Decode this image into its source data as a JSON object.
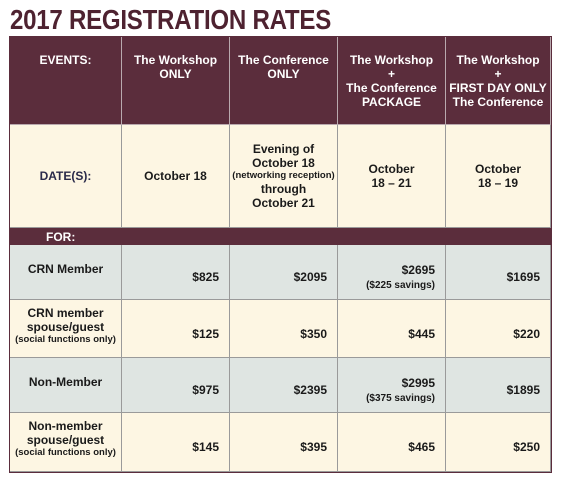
{
  "title": "2017 REGISTRATION RATES",
  "table": {
    "header": {
      "label": [
        "EVENTS:"
      ],
      "columns": [
        [
          "The Workshop",
          "ONLY"
        ],
        [
          "The Conference",
          "ONLY"
        ],
        [
          "The Workshop",
          "+",
          "The Conference",
          "PACKAGE"
        ],
        [
          "The Workshop",
          "+",
          "FIRST DAY ONLY",
          "The Conference"
        ]
      ]
    },
    "dates": {
      "label": [
        "DATE(S):"
      ],
      "cells": [
        [
          "October 18"
        ],
        [
          "Evening of",
          "October 18",
          "(networking reception)",
          "through",
          "October 21"
        ],
        [
          "October",
          "18 – 21"
        ],
        [
          "October",
          "18 – 19"
        ]
      ]
    },
    "for_label": "FOR:",
    "rows": [
      {
        "label": [
          "CRN Member"
        ],
        "prices": [
          "$825",
          "$2095",
          "$2695",
          "$1695"
        ],
        "savings": "($225 savings)"
      },
      {
        "label": [
          "CRN member",
          "spouse/guest",
          "(social functions only)"
        ],
        "prices": [
          "$125",
          "$350",
          "$445",
          "$220"
        ]
      },
      {
        "label": [
          "Non-Member"
        ],
        "prices": [
          "$975",
          "$2395",
          "$2995",
          "$1895"
        ],
        "savings": "($375 savings)"
      },
      {
        "label": [
          "Non-member",
          "spouse/guest",
          "(social functions only)"
        ],
        "prices": [
          "$145",
          "$395",
          "$465",
          "$250"
        ]
      }
    ]
  }
}
